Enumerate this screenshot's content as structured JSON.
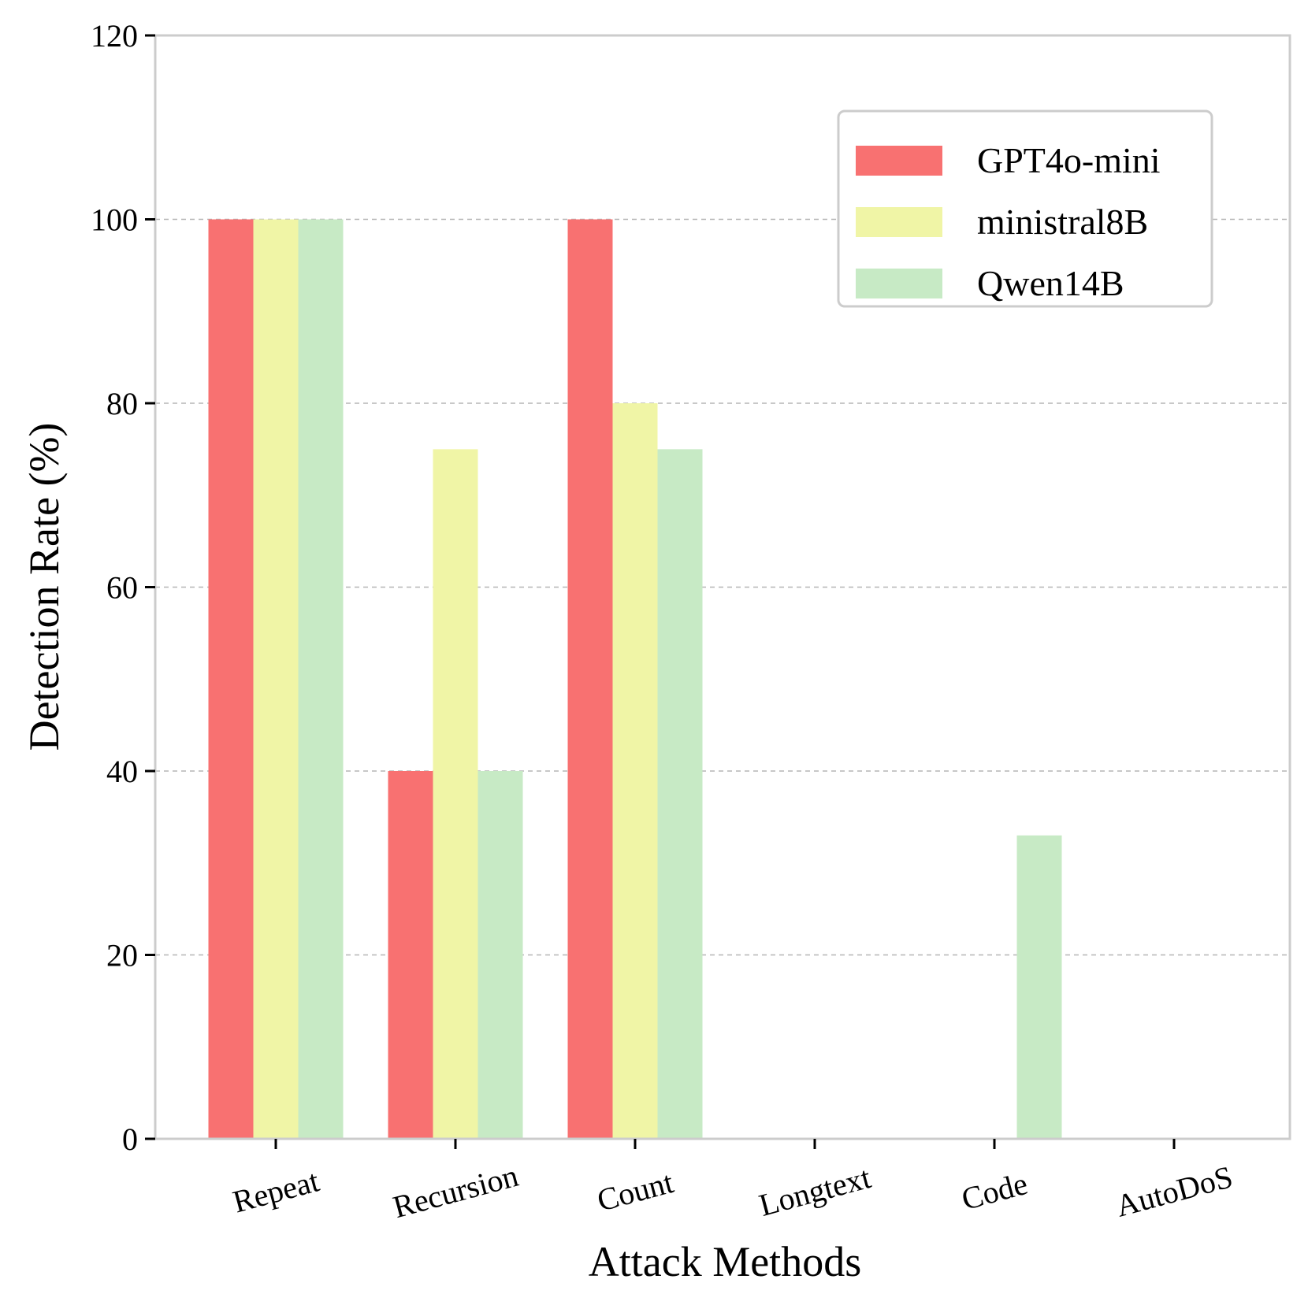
{
  "chart_data": {
    "type": "bar",
    "title": "",
    "xlabel": "Attack Methods",
    "ylabel": "Detection Rate (%)",
    "categories": [
      "Repeat",
      "Recursion",
      "Count",
      "Longtext",
      "Code",
      "AutoDoS"
    ],
    "series": [
      {
        "name": "GPT4o-mini",
        "color": "#f87171",
        "values": [
          100,
          40,
          100,
          0,
          0,
          0
        ]
      },
      {
        "name": "ministral8B",
        "color": "#f0f5a6",
        "values": [
          100,
          75,
          80,
          0,
          0,
          0
        ]
      },
      {
        "name": "Qwen14B",
        "color": "#c7eac5",
        "values": [
          100,
          40,
          75,
          0,
          33,
          0
        ]
      }
    ],
    "ylim": [
      0,
      120
    ],
    "yticks": [
      0,
      20,
      40,
      60,
      80,
      100,
      120
    ],
    "ytick_labels": [
      "0",
      "20",
      "40",
      "60",
      "80",
      "100",
      "120"
    ],
    "grid": "y-dashed",
    "legend_position": "top-right"
  }
}
